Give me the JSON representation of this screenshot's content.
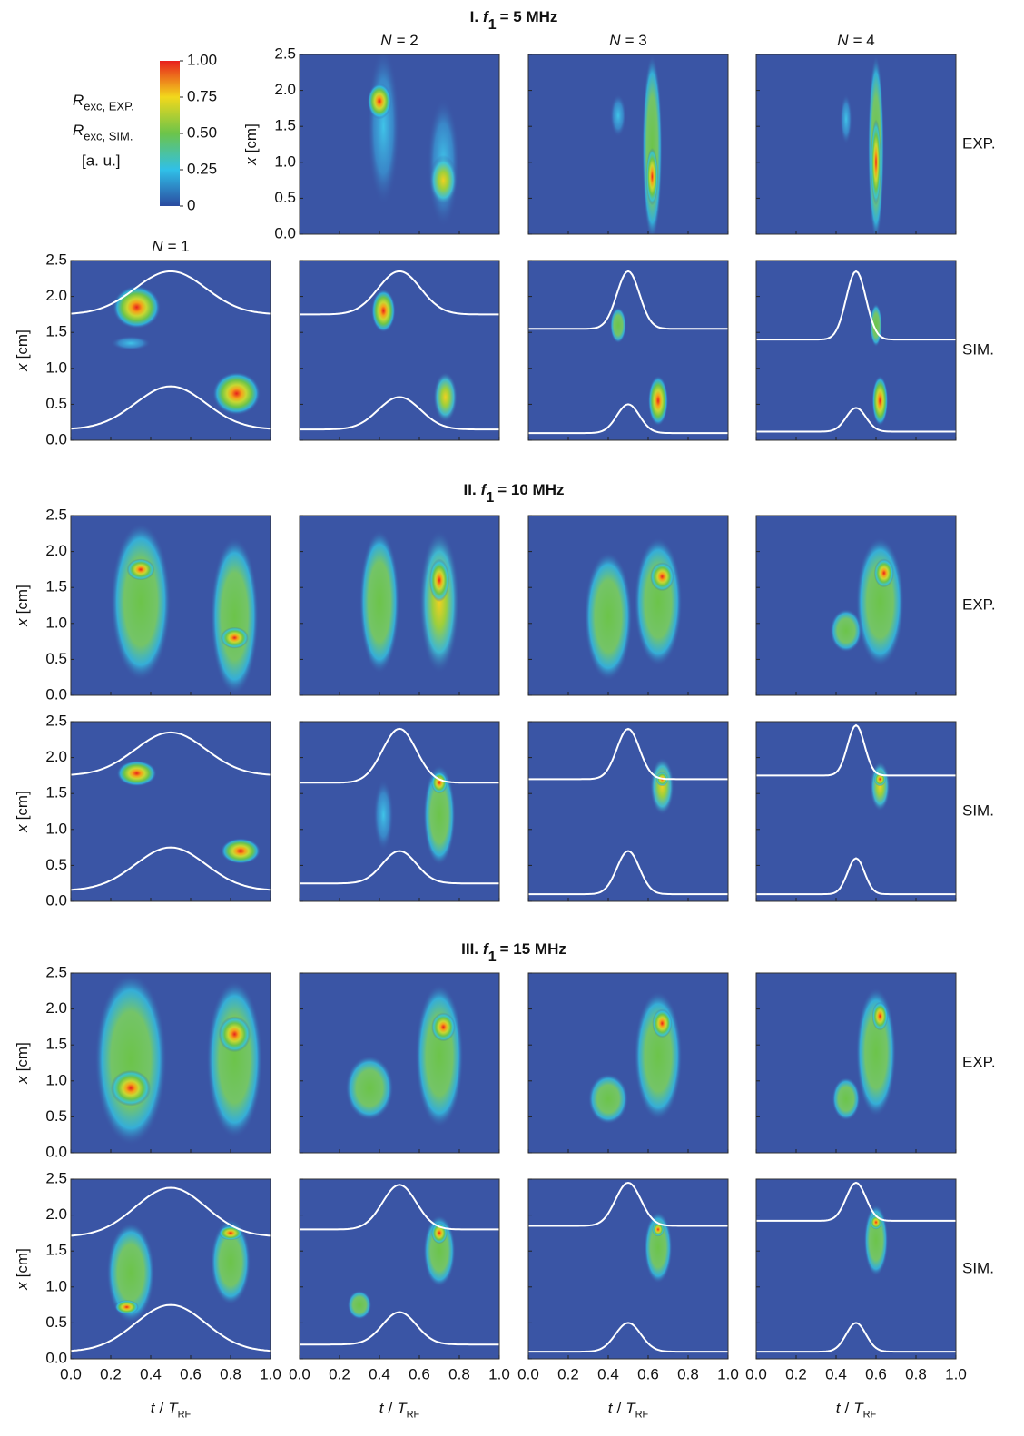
{
  "figure": {
    "type": "heatmap-grid",
    "colorbar": {
      "labels": [
        {
          "symbol": "R",
          "subscript": "exc, EXP."
        },
        {
          "symbol": "R",
          "subscript": "exc, SIM."
        }
      ],
      "unit": "[a. u.]",
      "ticks": [
        {
          "value": 1,
          "label": "1.00"
        },
        0.75,
        {
          "value": 0.5,
          "label": "0.50"
        },
        0.25,
        0
      ]
    },
    "columns": [
      {
        "symbol": "N",
        "text": "= 1"
      },
      {
        "symbol": "N",
        "text": "= 2"
      },
      {
        "symbol": "N",
        "text": "= 3"
      },
      {
        "symbol": "N",
        "text": "= 4"
      }
    ],
    "row_labels": [
      "EXP.",
      "SIM."
    ],
    "sections": [
      {
        "numeral": "I.",
        "symbol": "f",
        "subscript": "1",
        "rest": "= 5 MHz"
      },
      {
        "numeral": "II.",
        "symbol": "f",
        "subscript": "1",
        "rest": "= 10 MHz"
      },
      {
        "numeral": "III.",
        "symbol": "f",
        "subscript": "1",
        "rest": "= 15 MHz"
      }
    ],
    "y_label": {
      "symbol": "x",
      "text": "[cm]"
    },
    "x_label": {
      "symbol": "t",
      "slash": "/",
      "symbol2": "T",
      "subscript": "RF"
    },
    "ylim": [
      0,
      2.5
    ],
    "yticks": [
      {
        "value": 0,
        "label": "0.0"
      },
      0.5,
      {
        "value": 1,
        "label": "1.0"
      },
      1.5,
      {
        "value": 2,
        "label": "2.0"
      },
      2.5
    ],
    "xlim": [
      0,
      1
    ],
    "xticks": [
      {
        "value": 0,
        "label": "0.0"
      },
      0.2,
      0.4,
      0.6,
      0.8,
      {
        "value": 1,
        "label": "1.0"
      }
    ]
  }
}
